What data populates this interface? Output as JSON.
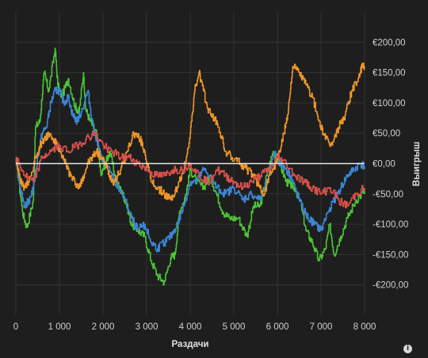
{
  "chart_data": {
    "type": "line",
    "title": "",
    "xlabel": "Раздачи",
    "ylabel": "Выигрыш",
    "xlim": [
      0,
      8000
    ],
    "ylim": [
      -250,
      250
    ],
    "x_ticks": [
      0,
      1000,
      2000,
      3000,
      4000,
      5000,
      6000,
      7000,
      8000
    ],
    "x_tick_labels": [
      "0",
      "1 000",
      "2 000",
      "3 000",
      "4 000",
      "5 000",
      "6 000",
      "7 000",
      "8 000"
    ],
    "y_ticks": [
      200,
      150,
      100,
      50,
      0,
      -50,
      -100,
      -150,
      -200
    ],
    "y_tick_labels": [
      "€200,00",
      "€150,00",
      "€100,00",
      "€50,00",
      "€0,00",
      "-€50,00",
      "-€100,00",
      "-€150,00",
      "-€200,00"
    ],
    "y_axis_side": "right",
    "grid": true,
    "zero_line": true,
    "series": [
      {
        "color": "#4cc437",
        "x": [
          0,
          150,
          250,
          400,
          450,
          550,
          650,
          750,
          900,
          960,
          1050,
          1200,
          1350,
          1450,
          1550,
          1600,
          1700,
          1850,
          1950,
          2050,
          2150,
          2300,
          2450,
          2550,
          2650,
          2800,
          2950,
          3100,
          3250,
          3400,
          3550,
          3650,
          3750,
          3900,
          4000,
          4150,
          4300,
          4450,
          4600,
          4750,
          4900,
          5100,
          5300,
          5450,
          5600,
          5750,
          5900,
          6050,
          6200,
          6300,
          6400,
          6550,
          6650,
          6800,
          6950,
          7100,
          7200,
          7300,
          7450,
          7600,
          7800,
          8000
        ],
        "y": [
          10,
          -80,
          -105,
          -60,
          60,
          70,
          150,
          120,
          190,
          130,
          110,
          140,
          95,
          85,
          150,
          90,
          70,
          50,
          -20,
          0,
          20,
          -30,
          -50,
          -70,
          -100,
          -110,
          -120,
          -160,
          -185,
          -195,
          -155,
          -150,
          -80,
          -50,
          -10,
          -30,
          -40,
          -20,
          -50,
          -80,
          -90,
          -90,
          -120,
          -70,
          -70,
          -20,
          20,
          0,
          -30,
          -35,
          -40,
          -70,
          -110,
          -130,
          -160,
          -140,
          -100,
          -150,
          -120,
          -90,
          -60,
          -45
        ]
      },
      {
        "color": "#3b86d4",
        "x": [
          0,
          100,
          200,
          300,
          400,
          500,
          600,
          700,
          800,
          900,
          1000,
          1100,
          1200,
          1300,
          1400,
          1500,
          1650,
          1750,
          1850,
          1950,
          2050,
          2200,
          2350,
          2500,
          2650,
          2800,
          2950,
          3100,
          3250,
          3400,
          3550,
          3700,
          3850,
          4000,
          4150,
          4300,
          4450,
          4600,
          4800,
          5000,
          5200,
          5400,
          5600,
          5800,
          5950,
          6050,
          6200,
          6300,
          6400,
          6550,
          6700,
          6850,
          7000,
          7150,
          7300,
          7450,
          7600,
          7750,
          7900,
          8000
        ],
        "y": [
          10,
          -40,
          -70,
          -60,
          -40,
          10,
          50,
          60,
          100,
          120,
          120,
          100,
          110,
          80,
          70,
          85,
          120,
          70,
          40,
          10,
          0,
          -20,
          -40,
          -60,
          -90,
          -110,
          -100,
          -130,
          -140,
          -130,
          -120,
          -100,
          -70,
          -30,
          -30,
          -10,
          -20,
          -40,
          -50,
          -40,
          -60,
          -50,
          -60,
          -20,
          20,
          0,
          -10,
          -20,
          -40,
          -70,
          -90,
          -100,
          -110,
          -80,
          -60,
          -40,
          -20,
          -10,
          0,
          -5
        ]
      },
      {
        "color": "#f0962a",
        "x": [
          0,
          100,
          200,
          300,
          450,
          550,
          650,
          750,
          850,
          950,
          1050,
          1150,
          1250,
          1350,
          1450,
          1550,
          1650,
          1750,
          1850,
          1950,
          2050,
          2150,
          2250,
          2400,
          2550,
          2700,
          2850,
          2950,
          3100,
          3250,
          3400,
          3550,
          3700,
          3850,
          4000,
          4100,
          4200,
          4300,
          4400,
          4500,
          4650,
          4800,
          4950,
          5150,
          5300,
          5450,
          5600,
          5700,
          5800,
          5950,
          6050,
          6150,
          6250,
          6350,
          6500,
          6650,
          6800,
          6950,
          7100,
          7250,
          7400,
          7550,
          7700,
          7850,
          7950,
          8000
        ],
        "y": [
          10,
          -30,
          -40,
          -30,
          10,
          30,
          40,
          50,
          40,
          30,
          10,
          0,
          -20,
          -30,
          -40,
          -20,
          0,
          10,
          20,
          10,
          0,
          -20,
          -30,
          -10,
          20,
          50,
          40,
          20,
          -30,
          -40,
          -50,
          -60,
          -40,
          -10,
          50,
          120,
          150,
          120,
          90,
          80,
          60,
          20,
          10,
          0,
          -10,
          -20,
          -40,
          -50,
          -20,
          0,
          20,
          50,
          90,
          160,
          150,
          130,
          110,
          70,
          40,
          30,
          60,
          80,
          120,
          140,
          160,
          160
        ]
      },
      {
        "color": "#d9504a",
        "x": [
          0,
          200,
          400,
          600,
          800,
          1000,
          1200,
          1400,
          1600,
          1800,
          2000,
          2200,
          2400,
          2600,
          2800,
          3000,
          3200,
          3400,
          3600,
          3800,
          4000,
          4200,
          4400,
          4600,
          4800,
          5000,
          5200,
          5400,
          5600,
          5800,
          6000,
          6200,
          6400,
          6600,
          6800,
          7000,
          7200,
          7400,
          7600,
          7800,
          8000
        ],
        "y": [
          10,
          -20,
          -30,
          10,
          20,
          30,
          20,
          30,
          40,
          50,
          30,
          20,
          10,
          10,
          0,
          -10,
          -20,
          -20,
          -10,
          -10,
          0,
          -20,
          -30,
          -10,
          -20,
          -30,
          -40,
          -30,
          -20,
          -10,
          10,
          0,
          -20,
          -30,
          -40,
          -50,
          -40,
          -60,
          -70,
          -50,
          -40
        ]
      }
    ]
  },
  "info_icon": "info-icon",
  "info_symbol": "i"
}
